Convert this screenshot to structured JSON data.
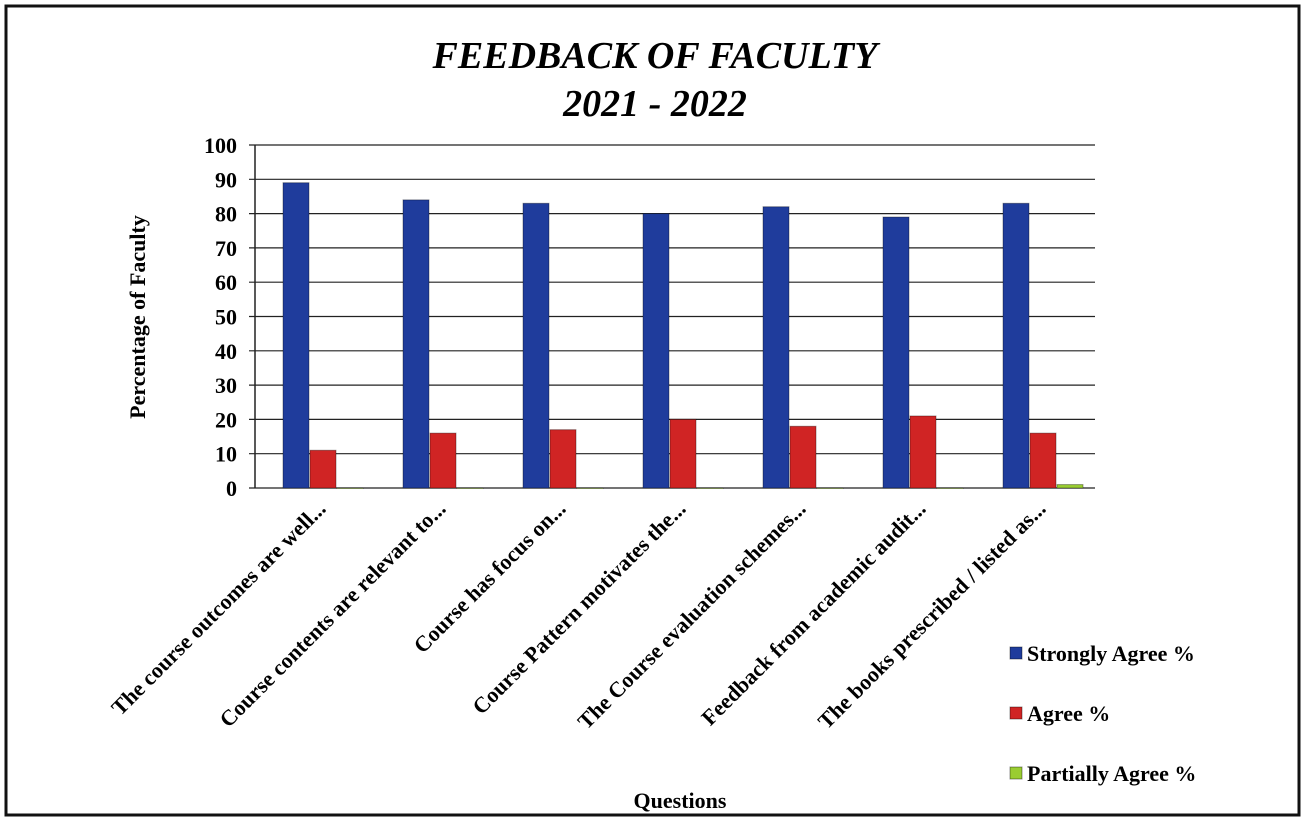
{
  "chart_data": {
    "type": "bar",
    "title": "FEEDBACK OF FACULTY",
    "subtitle": "2021 - 2022",
    "x_label": "Questions",
    "y_label": "Percentage of Faculty",
    "categories": [
      "The course outcomes are well...",
      "Course contents are relevant to...",
      "Course has focus on...",
      "Course Pattern motivates the...",
      "The Course evaluation schemes...",
      "Feedback from academic audit...",
      "The books prescribed / listed as..."
    ],
    "series": [
      {
        "name": "Strongly Agree %",
        "color": "#1f3c9c",
        "values": [
          89,
          84,
          83,
          80,
          82,
          79,
          83
        ]
      },
      {
        "name": "Agree %",
        "color": "#d02424",
        "values": [
          11,
          16,
          17,
          20,
          18,
          21,
          16
        ]
      },
      {
        "name": "Partially Agree %",
        "color": "#9acd32",
        "values": [
          0,
          0,
          0,
          0,
          0,
          0,
          1
        ]
      }
    ],
    "ylim": [
      0,
      100
    ],
    "yticks": [
      0,
      10,
      20,
      30,
      40,
      50,
      60,
      70,
      80,
      90,
      100
    ],
    "grid": true,
    "legend": "lower right"
  }
}
